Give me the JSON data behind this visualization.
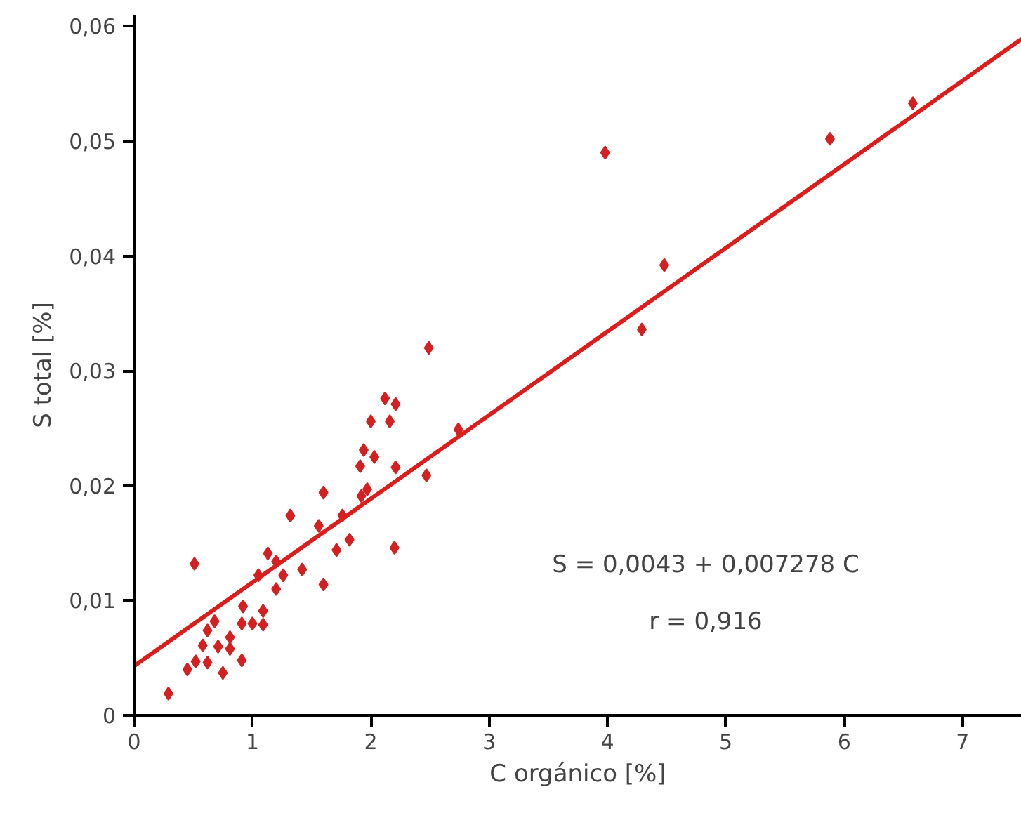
{
  "chart_data": {
    "type": "scatter",
    "xlabel": "C orgánico [%]",
    "ylabel": "S total [%]",
    "xlim": [
      0,
      7.5
    ],
    "ylim": [
      0,
      0.061
    ],
    "xticks": [
      0,
      1,
      2,
      3,
      4,
      5,
      6,
      7
    ],
    "yticks": [
      0,
      {
        "value": 0.01,
        "label": "0,01"
      },
      {
        "value": 0.02,
        "label": "0,02"
      },
      {
        "value": 0.03,
        "label": "0,03"
      },
      {
        "value": 0.04,
        "label": "0,04"
      },
      {
        "value": 0.05,
        "label": "0,05"
      },
      {
        "value": 0.06,
        "label": "0,06"
      }
    ],
    "grid": false,
    "annotations": [
      "S = 0,0043 + 0,007278 C",
      "r = 0,916"
    ],
    "series": [
      {
        "marker": "diamond",
        "color": "#d42020",
        "x": [
          0.29,
          0.45,
          0.52,
          0.62,
          0.75,
          0.58,
          0.71,
          0.81,
          0.91,
          0.81,
          0.62,
          0.68,
          0.91,
          1.0,
          1.09,
          1.09,
          0.92,
          1.05,
          1.13,
          1.2,
          1.2,
          1.26,
          1.42,
          1.32,
          0.51,
          1.6,
          1.56,
          1.6,
          1.71,
          1.76,
          1.82,
          1.92,
          1.97,
          1.91,
          1.94,
          2.03,
          2.0,
          2.12,
          2.16,
          2.21,
          2.21,
          2.2,
          2.47,
          2.49,
          2.74,
          3.98,
          4.48,
          4.29,
          5.88,
          6.58
        ],
        "values": [
          0.0019,
          0.004,
          0.0047,
          0.0046,
          0.0037,
          0.0061,
          0.006,
          0.0058,
          0.0048,
          0.0068,
          0.0074,
          0.0082,
          0.008,
          0.008,
          0.0079,
          0.0091,
          0.0095,
          0.0122,
          0.0141,
          0.0134,
          0.011,
          0.0122,
          0.0127,
          0.0174,
          0.0132,
          0.0114,
          0.0165,
          0.0194,
          0.0144,
          0.0174,
          0.0153,
          0.0191,
          0.0197,
          0.0217,
          0.0231,
          0.0225,
          0.0256,
          0.0276,
          0.0256,
          0.0271,
          0.0216,
          0.0146,
          0.0209,
          0.032,
          0.0249,
          0.049,
          0.0392,
          0.0336,
          0.0502,
          0.0533
        ]
      },
      {
        "type": "line",
        "color": "#dd1c1c",
        "line_style": "solid",
        "x": [
          0,
          7.5
        ],
        "values": [
          0.0043,
          0.0589
        ]
      }
    ]
  }
}
